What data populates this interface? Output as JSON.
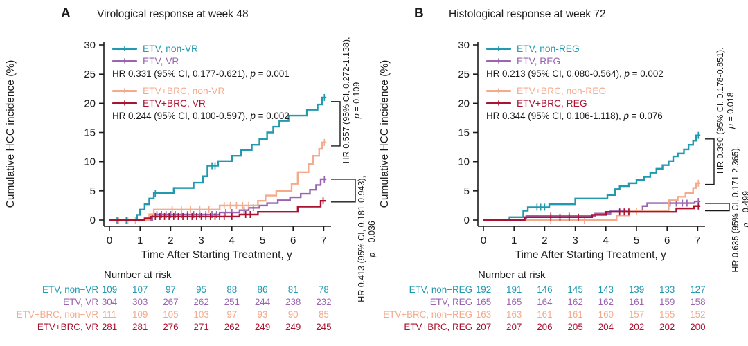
{
  "ink_color": "#1a1a1a",
  "chart_data": [
    {
      "type": "step-line (Kaplan-Meier cumulative incidence)",
      "panel": "A",
      "title": "Virological response at week 48",
      "xlabel": "Time After Starting Treatment, y",
      "ylabel": "Cumulative HCC incidence (%)",
      "xlim": [
        0,
        7.1
      ],
      "ylim": [
        0,
        31
      ],
      "xticks": [
        0,
        1,
        2,
        3,
        4,
        5,
        6,
        7
      ],
      "yticks": [
        0,
        5,
        10,
        15,
        20,
        25,
        30
      ],
      "legend_position": "top-left inside plot",
      "grid": false,
      "series": [
        {
          "name": "ETV, non-VR",
          "color": "#2199ae",
          "steps": [
            [
              0.9,
              0.9
            ],
            [
              1.0,
              1.8
            ],
            [
              1.15,
              2.7
            ],
            [
              1.3,
              3.7
            ],
            [
              1.45,
              4.6
            ],
            [
              2.1,
              5.5
            ],
            [
              2.75,
              6.4
            ],
            [
              3.05,
              7.5
            ],
            [
              3.2,
              9.3
            ],
            [
              3.55,
              10.1
            ],
            [
              4.0,
              11.0
            ],
            [
              4.3,
              12.0
            ],
            [
              4.65,
              12.9
            ],
            [
              4.9,
              13.9
            ],
            [
              5.15,
              15.0
            ],
            [
              5.35,
              16.0
            ],
            [
              5.55,
              17.0
            ],
            [
              5.85,
              17.9
            ],
            [
              6.45,
              18.9
            ],
            [
              6.8,
              19.8
            ],
            [
              6.95,
              21.0
            ]
          ],
          "censors": [
            [
              0.25,
              0
            ],
            [
              0.55,
              0
            ],
            [
              1.5,
              4.6
            ],
            [
              3.35,
              9.3
            ],
            [
              3.45,
              9.3
            ],
            [
              7.02,
              21.0
            ]
          ]
        },
        {
          "name": "ETV, VR",
          "color": "#9965b1",
          "steps": [
            [
              1.4,
              0.95
            ],
            [
              3.6,
              1.3
            ],
            [
              4.25,
              1.7
            ],
            [
              4.55,
              2.1
            ],
            [
              4.9,
              2.5
            ],
            [
              5.15,
              2.9
            ],
            [
              5.5,
              3.4
            ],
            [
              5.9,
              3.9
            ],
            [
              6.25,
              4.5
            ],
            [
              6.55,
              5.2
            ],
            [
              6.75,
              6.0
            ],
            [
              6.9,
              7.0
            ]
          ],
          "censors": [
            [
              1.55,
              0.95
            ],
            [
              1.7,
              0.95
            ],
            [
              1.85,
              0.95
            ],
            [
              2.0,
              0.95
            ],
            [
              2.15,
              0.95
            ],
            [
              2.35,
              0.95
            ],
            [
              2.55,
              0.95
            ],
            [
              2.75,
              0.95
            ],
            [
              2.95,
              0.95
            ],
            [
              3.15,
              0.95
            ],
            [
              3.35,
              0.95
            ],
            [
              3.5,
              0.95
            ],
            [
              3.8,
              1.3
            ],
            [
              4.0,
              1.3
            ],
            [
              4.4,
              1.7
            ],
            [
              4.7,
              2.1
            ],
            [
              7.02,
              7.0
            ]
          ]
        },
        {
          "name": "ETV+BRC, non-VR",
          "color": "#f6aa8c",
          "steps": [
            [
              1.3,
              1.0
            ],
            [
              1.45,
              1.8
            ],
            [
              3.6,
              2.5
            ],
            [
              4.85,
              3.3
            ],
            [
              5.1,
              4.2
            ],
            [
              5.45,
              5.0
            ],
            [
              5.95,
              6.2
            ],
            [
              6.15,
              8.2
            ],
            [
              6.5,
              9.6
            ],
            [
              6.65,
              11.0
            ],
            [
              6.85,
              12.2
            ],
            [
              6.95,
              13.3
            ]
          ],
          "censors": [
            [
              0.3,
              0
            ],
            [
              0.6,
              0
            ],
            [
              0.85,
              0
            ],
            [
              2.05,
              1.8
            ],
            [
              2.35,
              1.8
            ],
            [
              2.65,
              1.8
            ],
            [
              2.95,
              1.8
            ],
            [
              3.25,
              1.8
            ],
            [
              3.75,
              2.5
            ],
            [
              3.95,
              2.5
            ],
            [
              4.15,
              2.5
            ],
            [
              4.35,
              2.5
            ],
            [
              4.55,
              2.5
            ],
            [
              7.02,
              13.3
            ]
          ]
        },
        {
          "name": "ETV+BRC, VR",
          "color": "#ab1230",
          "steps": [
            [
              1.15,
              0.3
            ],
            [
              1.35,
              0.6
            ],
            [
              4.25,
              0.95
            ],
            [
              4.85,
              1.4
            ],
            [
              6.15,
              2.3
            ],
            [
              6.9,
              3.3
            ]
          ],
          "censors": [
            [
              1.5,
              0.6
            ],
            [
              1.65,
              0.6
            ],
            [
              1.8,
              0.6
            ],
            [
              1.95,
              0.6
            ],
            [
              2.1,
              0.6
            ],
            [
              2.25,
              0.6
            ],
            [
              2.4,
              0.6
            ],
            [
              2.55,
              0.6
            ],
            [
              2.7,
              0.6
            ],
            [
              2.85,
              0.6
            ],
            [
              3.0,
              0.6
            ],
            [
              3.15,
              0.6
            ],
            [
              3.3,
              0.6
            ],
            [
              3.45,
              0.6
            ],
            [
              3.6,
              0.6
            ],
            [
              3.75,
              0.6
            ],
            [
              4.0,
              0.6
            ],
            [
              4.45,
              0.95
            ],
            [
              4.6,
              0.95
            ],
            [
              6.98,
              3.3
            ]
          ]
        }
      ],
      "legend_hr": [
        "HR 0.331 (95% CI, 0.177-0.621), p = 0.001",
        "HR 0.244 (95% CI, 0.100-0.597), p = 0.002"
      ],
      "brackets": [
        {
          "y_top": 20.3,
          "y_bottom": 12.7,
          "line1": "HR 0.557 (95% CI, 0.272-1.138),",
          "line2": "p = 0.109"
        },
        {
          "y_top": 7.0,
          "y_bottom": 3.1,
          "line1": "HR 0.413 (95% CI, 0.181-0.943),",
          "line2": "p = 0.036"
        }
      ],
      "risk_table": {
        "header": "Number at risk",
        "time_columns": [
          0,
          1,
          2,
          3,
          4,
          5,
          6,
          7
        ],
        "rows": [
          {
            "label": "ETV, non−VR",
            "counts": [
              109,
              107,
              97,
              95,
              88,
              86,
              81,
              78
            ]
          },
          {
            "label": "ETV, VR",
            "counts": [
              304,
              303,
              267,
              262,
              251,
              244,
              238,
              232
            ]
          },
          {
            "label": "ETV+BRC, non−VR",
            "counts": [
              111,
              109,
              105,
              103,
              97,
              93,
              90,
              85
            ]
          },
          {
            "label": "ETV+BRC, VR",
            "counts": [
              281,
              281,
              276,
              271,
              262,
              249,
              249,
              245
            ]
          }
        ]
      }
    },
    {
      "type": "step-line (Kaplan-Meier cumulative incidence)",
      "panel": "B",
      "title": "Histological response at week 72",
      "xlabel": "Time After Starting Treatment, y",
      "ylabel": "Cumulative HCC incidence (%)",
      "xlim": [
        0,
        7.1
      ],
      "ylim": [
        0,
        31
      ],
      "xticks": [
        0,
        1,
        2,
        3,
        4,
        5,
        6,
        7
      ],
      "yticks": [
        0,
        5,
        10,
        15,
        20,
        25,
        30
      ],
      "legend_position": "top-left inside plot",
      "grid": false,
      "series": [
        {
          "name": "ETV, non-REG",
          "color": "#2199ae",
          "steps": [
            [
              0.85,
              0.5
            ],
            [
              1.3,
              1.6
            ],
            [
              1.45,
              2.2
            ],
            [
              2.15,
              2.7
            ],
            [
              3.0,
              3.7
            ],
            [
              4.05,
              4.3
            ],
            [
              4.3,
              5.3
            ],
            [
              4.45,
              5.8
            ],
            [
              4.75,
              6.3
            ],
            [
              5.0,
              6.9
            ],
            [
              5.25,
              7.4
            ],
            [
              5.45,
              8.1
            ],
            [
              5.65,
              8.8
            ],
            [
              5.85,
              9.4
            ],
            [
              6.05,
              10.1
            ],
            [
              6.2,
              10.9
            ],
            [
              6.35,
              11.4
            ],
            [
              6.55,
              12.1
            ],
            [
              6.7,
              12.9
            ],
            [
              6.85,
              13.6
            ],
            [
              6.95,
              14.5
            ]
          ],
          "censors": [
            [
              1.75,
              2.2
            ],
            [
              1.87,
              2.2
            ],
            [
              2.0,
              2.2
            ],
            [
              7.02,
              14.5
            ]
          ]
        },
        {
          "name": "ETV, REG",
          "color": "#9965b1",
          "steps": [
            [
              1.4,
              0.7
            ],
            [
              3.65,
              1.1
            ],
            [
              4.15,
              1.5
            ],
            [
              5.2,
              2.4
            ],
            [
              5.35,
              2.9
            ],
            [
              6.9,
              3.2
            ]
          ],
          "censors": [
            [
              2.2,
              0.7
            ],
            [
              2.8,
              0.7
            ],
            [
              6.1,
              2.9
            ],
            [
              6.3,
              2.9
            ],
            [
              6.5,
              2.9
            ],
            [
              6.65,
              2.9
            ],
            [
              7.02,
              3.2
            ]
          ]
        },
        {
          "name": "ETV+BRC, non-REG",
          "color": "#f6aa8c",
          "steps": [
            [
              4.35,
              0.8
            ],
            [
              4.75,
              1.5
            ],
            [
              6.05,
              3.4
            ],
            [
              6.35,
              4.0
            ],
            [
              6.6,
              4.6
            ],
            [
              6.85,
              5.5
            ],
            [
              6.95,
              6.3
            ]
          ],
          "censors": [
            [
              2.2,
              0
            ],
            [
              3.3,
              0
            ],
            [
              5.0,
              1.5
            ],
            [
              7.02,
              6.3
            ]
          ]
        },
        {
          "name": "ETV+BRC, REG",
          "color": "#ab1230",
          "steps": [
            [
              1.35,
              0.5
            ],
            [
              3.55,
              0.9
            ],
            [
              4.0,
              1.4
            ],
            [
              6.3,
              2.0
            ],
            [
              6.88,
              2.4
            ]
          ],
          "censors": [
            [
              2.2,
              0.5
            ],
            [
              2.5,
              0.5
            ],
            [
              2.8,
              0.5
            ],
            [
              3.1,
              0.5
            ],
            [
              4.45,
              1.4
            ],
            [
              4.6,
              1.4
            ],
            [
              4.75,
              1.4
            ],
            [
              7.02,
              2.4
            ]
          ]
        }
      ],
      "legend_hr": [
        "HR 0.213 (95% CI, 0.080-0.564), p = 0.002",
        "HR 0.344 (95% CI, 0.106-1.118), p = 0.076"
      ],
      "brackets": [
        {
          "y_top": 13.9,
          "y_bottom": 6.1,
          "line1": "HR 0.390 (95% CI, 0.178-0.851),",
          "line2": "p = 0.018"
        },
        {
          "y_top": 2.85,
          "y_bottom": 1.6,
          "line1": "HR 0.635 (95% CI, 0.171-2.365),",
          "line2": "p = 0.499"
        }
      ],
      "risk_table": {
        "header": "Number at risk",
        "time_columns": [
          0,
          1,
          2,
          3,
          4,
          5,
          6,
          7
        ],
        "rows": [
          {
            "label": "ETV, non−REG",
            "counts": [
              192,
              191,
              146,
              145,
              143,
              139,
              133,
              127
            ]
          },
          {
            "label": "ETV, REG",
            "counts": [
              165,
              165,
              164,
              162,
              162,
              161,
              159,
              158
            ]
          },
          {
            "label": "ETV+BRC, non−REG",
            "counts": [
              163,
              163,
              161,
              161,
              160,
              157,
              155,
              152
            ]
          },
          {
            "label": "ETV+BRC, REG",
            "counts": [
              207,
              207,
              206,
              205,
              204,
              202,
              202,
              200
            ]
          }
        ]
      }
    }
  ]
}
